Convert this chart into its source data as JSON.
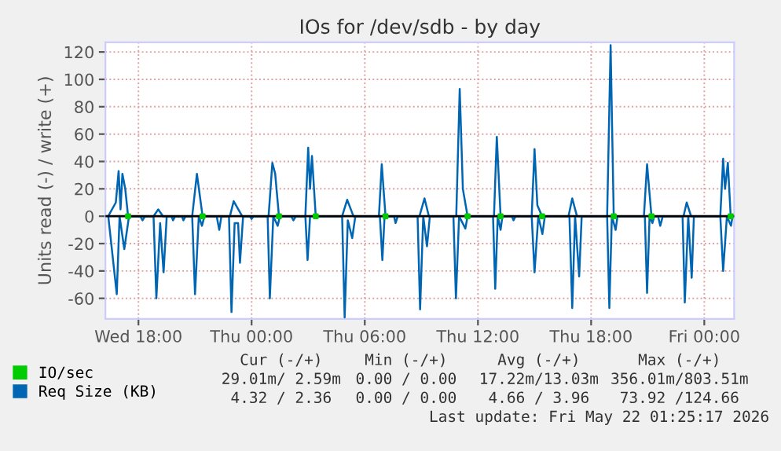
{
  "chart_data": {
    "type": "line",
    "title": "IOs for /dev/sdb - by day",
    "ylabel": "Units read (-) / write (+)",
    "xlim": [
      "2026-05-20T16:15",
      "2026-05-22T01:35"
    ],
    "ylim": [
      -75,
      127
    ],
    "xticks": [
      {
        "value": "2026-05-20T18:00",
        "label": "Wed 18:00"
      },
      {
        "value": "2026-05-21T00:00",
        "label": "Thu 00:00"
      },
      {
        "value": "2026-05-21T06:00",
        "label": "Thu 06:00"
      },
      {
        "value": "2026-05-21T12:00",
        "label": "Thu 12:00"
      },
      {
        "value": "2026-05-21T18:00",
        "label": "Thu 18:00"
      },
      {
        "value": "2026-05-22T00:00",
        "label": "Fri 00:00"
      }
    ],
    "yticks": [
      -60,
      -40,
      -20,
      0,
      20,
      40,
      60,
      80,
      100,
      120
    ],
    "grid": true,
    "legend": "bottom",
    "ref_lines": [
      {
        "axis": "y",
        "value": 0,
        "color": "#000000"
      }
    ],
    "series": [
      {
        "name": "IO/sec",
        "type": "scatter",
        "color": "#00cc00",
        "x": [
          "2026-05-20T17:27",
          "2026-05-20T21:24",
          "2026-05-21T01:27",
          "2026-05-21T03:24",
          "2026-05-21T07:06",
          "2026-05-21T11:27",
          "2026-05-21T13:12",
          "2026-05-21T15:24",
          "2026-05-21T19:12",
          "2026-05-21T21:12",
          "2026-05-22T01:24"
        ],
        "values": [
          0,
          0,
          0,
          0,
          0,
          0,
          0,
          0,
          0,
          0,
          0
        ]
      },
      {
        "name": "Req Size (KB)",
        "color": "#0066b3",
        "x": [
          "2026-05-20T16:24",
          "2026-05-20T16:48",
          "2026-05-20T16:57",
          "2026-05-20T17:03",
          "2026-05-20T17:09",
          "2026-05-20T17:18",
          "2026-05-20T17:27",
          "2026-05-20T18:48",
          "2026-05-20T19:03",
          "2026-05-20T19:18",
          "2026-05-20T20:51",
          "2026-05-20T21:06",
          "2026-05-20T21:24",
          "2026-05-20T22:51",
          "2026-05-20T23:03",
          "2026-05-20T23:30",
          "2026-05-21T00:54",
          "2026-05-21T01:06",
          "2026-05-21T01:15",
          "2026-05-21T01:27",
          "2026-05-21T02:51",
          "2026-05-21T03:00",
          "2026-05-21T03:06",
          "2026-05-21T03:12",
          "2026-05-21T03:24",
          "2026-05-21T04:48",
          "2026-05-21T05:04",
          "2026-05-21T05:24",
          "2026-05-21T06:45",
          "2026-05-21T06:54",
          "2026-05-21T07:06",
          "2026-05-21T08:54",
          "2026-05-21T09:10",
          "2026-05-21T09:24",
          "2026-05-21T10:51",
          "2026-05-21T11:02",
          "2026-05-21T11:12",
          "2026-05-21T11:27",
          "2026-05-21T12:51",
          "2026-05-21T13:00",
          "2026-05-21T13:12",
          "2026-05-21T14:51",
          "2026-05-21T15:00",
          "2026-05-21T15:09",
          "2026-05-21T15:24",
          "2026-05-21T16:48",
          "2026-05-21T17:00",
          "2026-05-21T17:15",
          "2026-05-21T18:51",
          "2026-05-21T19:02",
          "2026-05-21T19:12",
          "2026-05-21T20:48",
          "2026-05-21T20:58",
          "2026-05-21T21:12",
          "2026-05-21T22:54",
          "2026-05-21T23:04",
          "2026-05-21T23:18",
          "2026-05-22T00:51",
          "2026-05-22T01:00",
          "2026-05-22T01:06",
          "2026-05-22T01:15",
          "2026-05-22T01:24"
        ],
        "values": [
          0,
          10,
          33,
          5,
          31,
          20,
          0,
          0,
          5,
          0,
          0,
          31,
          0,
          0,
          11,
          0,
          0,
          39,
          31,
          0,
          0,
          50,
          20,
          44,
          0,
          0,
          12,
          0,
          0,
          38,
          0,
          0,
          13,
          0,
          0,
          93,
          20,
          0,
          0,
          58,
          0,
          0,
          49,
          8,
          0,
          0,
          13,
          0,
          0,
          125,
          0,
          0,
          38,
          0,
          0,
          10,
          0,
          0,
          42,
          20,
          39,
          0
        ]
      },
      {
        "color": "#0066b3",
        "x": [
          "2026-05-20T16:24",
          "2026-05-20T16:51",
          "2026-05-20T17:00",
          "2026-05-20T17:15",
          "2026-05-20T17:30",
          "2026-05-20T18:06",
          "2026-05-20T18:13",
          "2026-05-20T18:21",
          "2026-05-20T18:48",
          "2026-05-20T18:57",
          "2026-05-20T19:09",
          "2026-05-20T19:20",
          "2026-05-20T19:30",
          "2026-05-20T19:45",
          "2026-05-20T19:50",
          "2026-05-20T19:57",
          "2026-05-20T20:18",
          "2026-05-20T20:23",
          "2026-05-20T20:30",
          "2026-05-20T20:51",
          "2026-05-20T21:00",
          "2026-05-20T21:12",
          "2026-05-20T21:22",
          "2026-05-20T21:30",
          "2026-05-20T22:09",
          "2026-05-20T22:17",
          "2026-05-20T22:24",
          "2026-05-20T22:48",
          "2026-05-20T22:56",
          "2026-05-20T23:06",
          "2026-05-20T23:17",
          "2026-05-20T23:23",
          "2026-05-20T23:33",
          "2026-05-20T23:54",
          "2026-05-21T00:00",
          "2026-05-21T00:06",
          "2026-05-21T00:51",
          "2026-05-21T00:58",
          "2026-05-21T01:09",
          "2026-05-21T01:23",
          "2026-05-21T01:30",
          "2026-05-21T02:06",
          "2026-05-21T02:13",
          "2026-05-21T02:21",
          "2026-05-21T02:51",
          "2026-05-21T02:58",
          "2026-05-21T03:06",
          "2026-05-21T04:48",
          "2026-05-21T04:56",
          "2026-05-21T05:06",
          "2026-05-21T05:20",
          "2026-05-21T05:30",
          "2026-05-21T06:48",
          "2026-05-21T06:56",
          "2026-05-21T07:03",
          "2026-05-21T07:33",
          "2026-05-21T07:38",
          "2026-05-21T07:45",
          "2026-05-21T08:48",
          "2026-05-21T08:56",
          "2026-05-21T09:06",
          "2026-05-21T09:18",
          "2026-05-21T09:27",
          "2026-05-21T10:42",
          "2026-05-21T10:50",
          "2026-05-21T11:00",
          "2026-05-21T11:20",
          "2026-05-21T11:27",
          "2026-05-21T12:48",
          "2026-05-21T12:55",
          "2026-05-21T13:03",
          "2026-05-21T13:12",
          "2026-05-21T13:18",
          "2026-05-21T13:48",
          "2026-05-21T13:53",
          "2026-05-21T14:00",
          "2026-05-21T14:51",
          "2026-05-21T15:00",
          "2026-05-21T15:12",
          "2026-05-21T15:25",
          "2026-05-21T15:33",
          "2026-05-21T16:51",
          "2026-05-21T17:00",
          "2026-05-21T17:09",
          "2026-05-21T17:22",
          "2026-05-21T17:30",
          "2026-05-21T18:51",
          "2026-05-21T18:58",
          "2026-05-21T19:06",
          "2026-05-21T19:18",
          "2026-05-21T19:24",
          "2026-05-21T20:51",
          "2026-05-21T20:58",
          "2026-05-21T21:06",
          "2026-05-21T21:15",
          "2026-05-21T21:21",
          "2026-05-21T21:33",
          "2026-05-21T21:40",
          "2026-05-21T21:48",
          "2026-05-21T22:51",
          "2026-05-21T22:58",
          "2026-05-21T23:09",
          "2026-05-21T23:20",
          "2026-05-21T23:27",
          "2026-05-22T00:51",
          "2026-05-22T01:00",
          "2026-05-22T01:12",
          "2026-05-22T01:25",
          "2026-05-22T01:30"
        ],
        "values": [
          0,
          -57,
          0,
          -24,
          0,
          0,
          -3,
          0,
          0,
          -60,
          -5,
          -41,
          0,
          0,
          -3,
          0,
          0,
          -3,
          0,
          0,
          -57,
          0,
          -7,
          0,
          0,
          -10,
          0,
          0,
          -70,
          -5,
          -5,
          -34,
          0,
          0,
          -2,
          0,
          0,
          -60,
          0,
          -7,
          0,
          0,
          -3,
          0,
          0,
          -32,
          0,
          0,
          -74,
          -3,
          -16,
          0,
          0,
          -32,
          0,
          0,
          -5,
          0,
          0,
          -68,
          0,
          -22,
          0,
          0,
          -60,
          0,
          -9,
          0,
          0,
          -53,
          0,
          -10,
          0,
          0,
          -3,
          0,
          0,
          -41,
          0,
          -13,
          0,
          0,
          -67,
          0,
          -44,
          0,
          0,
          -67,
          0,
          -10,
          0,
          0,
          -56,
          0,
          -5,
          0,
          0,
          -7,
          0,
          0,
          -63,
          0,
          -45,
          0,
          0,
          -40,
          0,
          -7,
          0
        ]
      }
    ],
    "annotations": [
      "Cur (-/+)",
      "Min (-/+)",
      "Avg (-/+)",
      "Max (-/+)",
      "29.01m/ 2.59m",
      "0.00 / 0.00",
      "17.22m/13.03m",
      "356.01m/803.51m",
      "4.32 / 2.36",
      "0.00 / 0.00",
      "4.66 / 3.96",
      "73.92 /124.66",
      "Last update: Fri May 22 01:25:17 2026"
    ]
  }
}
